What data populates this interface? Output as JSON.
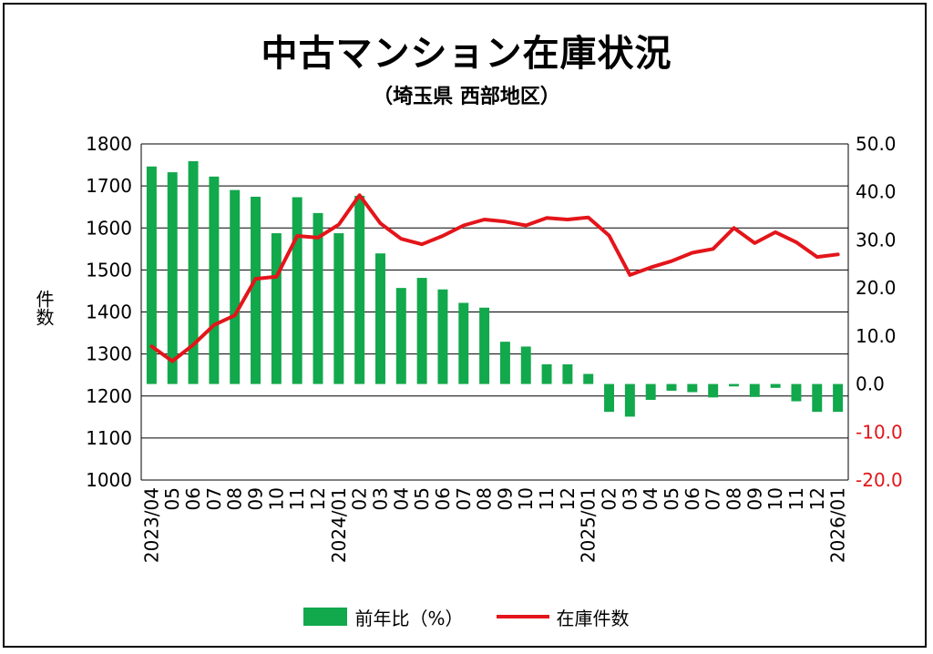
{
  "chart_data": {
    "type": "bar+line",
    "title": "中古マンション在庫状況",
    "subtitle": "（埼玉県 西部地区）",
    "ylabel_left": "件数",
    "ylim_left": [
      1000,
      1800
    ],
    "yticks_left": [
      "1800",
      "1700",
      "1600",
      "1500",
      "1400",
      "1300",
      "1200",
      "1100",
      "1000"
    ],
    "ylim_right": [
      -20,
      50
    ],
    "yticks_right": [
      "50.0",
      "40.0",
      "30.0",
      "20.0",
      "10.0",
      "0.0",
      "-10.0",
      "-20.0"
    ],
    "categories": [
      "2023/04",
      "05",
      "06",
      "07",
      "08",
      "09",
      "10",
      "11",
      "12",
      "2024/01",
      "02",
      "03",
      "04",
      "05",
      "06",
      "07",
      "08",
      "09",
      "10",
      "11",
      "12",
      "2025/01",
      "02",
      "03",
      "04",
      "05",
      "06",
      "07",
      "08",
      "09",
      "10",
      "11",
      "12",
      "2026/01"
    ],
    "series": [
      {
        "name": "前年比（%）",
        "type": "bar",
        "axis": "right",
        "color": "#12a84c",
        "values": [
          45.3,
          44.1,
          46.4,
          43.2,
          40.4,
          39.0,
          31.4,
          38.9,
          35.6,
          31.4,
          39.2,
          27.2,
          20.0,
          22.1,
          19.7,
          16.9,
          15.9,
          8.8,
          7.8,
          4.1,
          4.1,
          2.1,
          -5.8,
          -6.8,
          -3.3,
          -1.4,
          -1.7,
          -2.8,
          -0.5,
          -2.7,
          -0.8,
          -3.6,
          -5.8,
          -5.8
        ]
      },
      {
        "name": "在庫件数",
        "type": "line",
        "axis": "left",
        "color": "#e3151a",
        "values": [
          1318,
          1283,
          1322,
          1369,
          1392,
          1479,
          1484,
          1581,
          1577,
          1608,
          1678,
          1611,
          1574,
          1561,
          1581,
          1606,
          1620,
          1615,
          1606,
          1624,
          1620,
          1625,
          1582,
          1488,
          1506,
          1521,
          1541,
          1550,
          1600,
          1564,
          1590,
          1566,
          1531,
          1537
        ]
      }
    ],
    "grid": true,
    "legend_position": "bottom"
  }
}
